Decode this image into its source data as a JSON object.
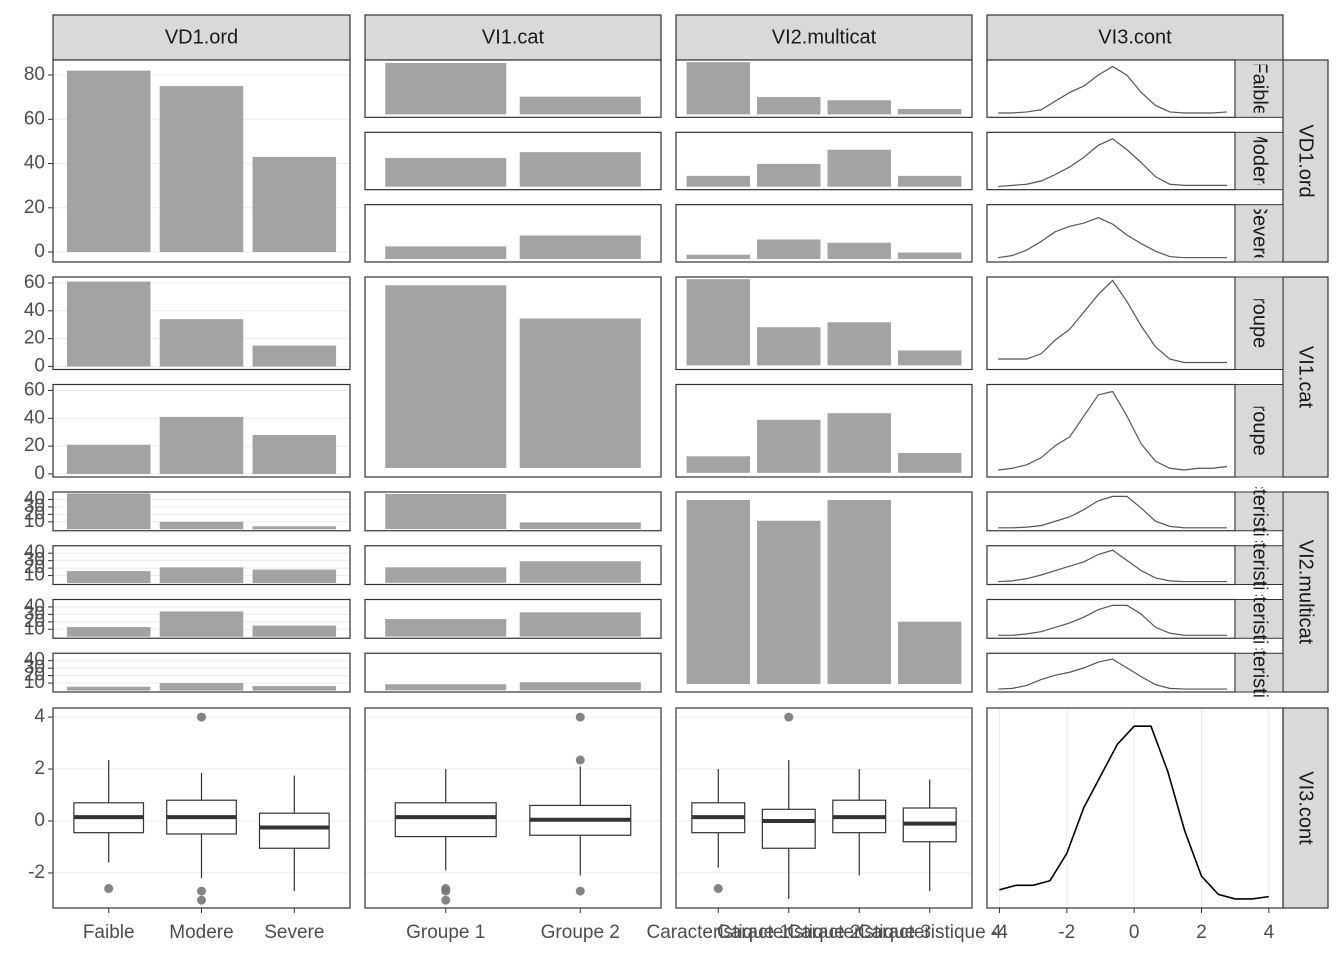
{
  "chart_data": {
    "type": "pairs",
    "colors": {
      "bar": "#a3a3a3",
      "density": "#555555",
      "diagonal_density": "#000000",
      "box": "#333333",
      "outlier": "#777777"
    },
    "variables": [
      {
        "name": "VD1.ord",
        "levels": [
          "Faible",
          "Modere",
          "Severe"
        ]
      },
      {
        "name": "VI1.cat",
        "levels": [
          "Groupe 1",
          "Groupe 2"
        ]
      },
      {
        "name": "VI2.multicat",
        "levels": [
          "Caracteristique 1",
          "Caracteristique 2",
          "Caracteristique 3",
          "Caracteristique 4"
        ]
      },
      {
        "name": "VI3.cont"
      }
    ],
    "panels": [
      [
        {
          "type": "bar",
          "values": [
            82,
            75,
            43
          ],
          "ylim": [
            -4.5,
            86.8
          ],
          "yticks": [
            0,
            20,
            40,
            60,
            80
          ]
        },
        {
          "type": "facet-bar",
          "series": [
            [
              61,
              21
            ],
            [
              34,
              41
            ],
            [
              15,
              28
            ]
          ],
          "ylim": [
            -3.5,
            64.5
          ]
        },
        {
          "type": "facet-bar",
          "series": [
            [
              48,
              16,
              13,
              5
            ],
            [
              10,
              21,
              34,
              10
            ],
            [
              4,
              18,
              15,
              6
            ]
          ],
          "ylim": [
            -2.7,
            50
          ]
        },
        {
          "type": "facet-density",
          "xlim": [
            -4.39,
            4.28
          ],
          "ylim": [
            -0.03,
            0.5
          ],
          "x": [
            -4,
            -3.5,
            -3,
            -2.5,
            -2,
            -1.5,
            -1,
            -0.5,
            0,
            0.5,
            1,
            1.5,
            2,
            2.5,
            3,
            3.5,
            4
          ],
          "series": [
            {
              "name": "Faible",
              "values": [
                0.01,
                0.01,
                0.02,
                0.04,
                0.12,
                0.2,
                0.26,
                0.36,
                0.44,
                0.36,
                0.2,
                0.08,
                0.02,
                0.01,
                0.01,
                0.01,
                0.02
              ]
            },
            {
              "name": "Modere",
              "values": [
                0,
                0.01,
                0.02,
                0.05,
                0.11,
                0.18,
                0.27,
                0.38,
                0.44,
                0.34,
                0.22,
                0.09,
                0.02,
                0.01,
                0.01,
                0.01,
                0.01
              ]
            },
            {
              "name": "Severe",
              "values": [
                0.01,
                0.03,
                0.08,
                0.16,
                0.25,
                0.3,
                0.33,
                0.38,
                0.32,
                0.22,
                0.14,
                0.07,
                0.02,
                0.01,
                0.01,
                0.01,
                0.01
              ]
            }
          ]
        }
      ],
      [
        {
          "type": "facet-bar",
          "series": [
            [
              61,
              34,
              15
            ],
            [
              21,
              41,
              28
            ]
          ],
          "ylim": [
            -2.2,
            64.3
          ],
          "yticks": [
            0,
            20,
            40,
            60
          ]
        },
        {
          "type": "bar",
          "values": [
            110,
            90
          ],
          "ylim": [
            -5.4,
            115
          ]
        },
        {
          "type": "facet-bar",
          "series": [
            [
              52,
              23,
              26,
              9
            ],
            [
              10,
              32,
              36,
              12
            ]
          ],
          "ylim": [
            -2.5,
            53.3
          ]
        },
        {
          "type": "facet-density",
          "xlim": [
            -4.39,
            4.28
          ],
          "ylim": [
            -0.03,
            0.5
          ],
          "x": [
            -4,
            -3.5,
            -3,
            -2.5,
            -2,
            -1.5,
            -1,
            -0.5,
            0,
            0.5,
            1,
            1.5,
            2,
            2.5,
            3,
            3.5,
            4
          ],
          "series": [
            {
              "name": "Groupe 1",
              "values": [
                0.03,
                0.03,
                0.03,
                0.06,
                0.14,
                0.2,
                0.3,
                0.4,
                0.48,
                0.36,
                0.22,
                0.1,
                0.03,
                0.01,
                0.01,
                0.01,
                0.01
              ]
            },
            {
              "name": "Groupe 2",
              "values": [
                0.01,
                0.02,
                0.04,
                0.08,
                0.15,
                0.2,
                0.32,
                0.44,
                0.46,
                0.32,
                0.16,
                0.06,
                0.02,
                0.01,
                0.02,
                0.02,
                0.03
              ]
            }
          ]
        }
      ],
      [
        {
          "type": "facet-bar",
          "series": [
            [
              48,
              10,
              4
            ],
            [
              16,
              21,
              18
            ],
            [
              13,
              34,
              15
            ],
            [
              5,
              10,
              6
            ]
          ],
          "ylim": [
            -2,
            50
          ],
          "yticks": [
            10,
            20,
            30,
            40
          ]
        },
        {
          "type": "facet-bar",
          "series": [
            [
              52,
              10
            ],
            [
              23,
              32
            ],
            [
              26,
              36
            ],
            [
              9,
              12
            ]
          ],
          "ylim": [
            -2.5,
            55
          ]
        },
        {
          "type": "bar",
          "values": [
            62,
            55,
            62,
            21
          ],
          "ylim": [
            -2.7,
            64.7
          ]
        },
        {
          "type": "facet-density",
          "xlim": [
            -4.39,
            4.28
          ],
          "ylim": [
            -0.03,
            0.5
          ],
          "x": [
            -4,
            -3.5,
            -3,
            -2.5,
            -2,
            -1.5,
            -1,
            -0.5,
            0,
            0.5,
            1,
            1.5,
            2,
            2.5,
            3,
            3.5,
            4
          ],
          "series": [
            {
              "name": "Caracteristique 1",
              "values": [
                0.01,
                0.01,
                0.02,
                0.04,
                0.1,
                0.16,
                0.26,
                0.38,
                0.44,
                0.44,
                0.28,
                0.1,
                0.03,
                0.01,
                0.01,
                0.01,
                0.01
              ]
            },
            {
              "name": "Caracteristique 2",
              "values": [
                0.01,
                0.02,
                0.05,
                0.1,
                0.16,
                0.22,
                0.28,
                0.38,
                0.44,
                0.3,
                0.16,
                0.06,
                0.02,
                0.01,
                0.01,
                0.01,
                0.01
              ]
            },
            {
              "name": "Caracteristique 3",
              "values": [
                0.01,
                0.01,
                0.03,
                0.06,
                0.12,
                0.18,
                0.26,
                0.36,
                0.42,
                0.42,
                0.3,
                0.12,
                0.04,
                0.01,
                0.01,
                0.01,
                0.01
              ]
            },
            {
              "name": "Caracteristique 4",
              "values": [
                0.01,
                0.02,
                0.06,
                0.14,
                0.2,
                0.24,
                0.3,
                0.38,
                0.42,
                0.3,
                0.18,
                0.07,
                0.02,
                0.01,
                0.01,
                0.01,
                0.01
              ]
            }
          ]
        }
      ],
      [
        {
          "type": "box",
          "ylim": [
            -3.35,
            4.35
          ],
          "yticks": [
            -2,
            0,
            2,
            4
          ],
          "boxes": [
            {
              "min": -1.6,
              "q1": -0.45,
              "median": 0.15,
              "q3": 0.7,
              "max": 2.35,
              "outliers": [
                -2.6
              ]
            },
            {
              "min": -2.2,
              "q1": -0.5,
              "median": 0.15,
              "q3": 0.8,
              "max": 1.85,
              "outliers": [
                4,
                -2.7,
                -3.05
              ]
            },
            {
              "min": -2.7,
              "q1": -1.05,
              "median": -0.25,
              "q3": 0.3,
              "max": 1.75,
              "outliers": []
            }
          ]
        },
        {
          "type": "box",
          "ylim": [
            -3.35,
            4.35
          ],
          "boxes": [
            {
              "min": -1.9,
              "q1": -0.6,
              "median": 0.15,
              "q3": 0.7,
              "max": 2.0,
              "outliers": [
                -2.6,
                -2.7,
                -3.05
              ]
            },
            {
              "min": -2.1,
              "q1": -0.55,
              "median": 0.05,
              "q3": 0.6,
              "max": 2.1,
              "outliers": [
                4,
                2.35,
                -2.7
              ]
            }
          ]
        },
        {
          "type": "box",
          "ylim": [
            -3.35,
            4.35
          ],
          "boxes": [
            {
              "min": -1.8,
              "q1": -0.45,
              "median": 0.15,
              "q3": 0.7,
              "max": 2.0,
              "outliers": [
                -2.6
              ]
            },
            {
              "min": -3.0,
              "q1": -1.05,
              "median": 0.0,
              "q3": 0.45,
              "max": 2.35,
              "outliers": [
                4
              ]
            },
            {
              "min": -2.1,
              "q1": -0.45,
              "median": 0.15,
              "q3": 0.8,
              "max": 2.0,
              "outliers": []
            },
            {
              "min": -2.7,
              "q1": -0.8,
              "median": -0.1,
              "q3": 0.5,
              "max": 1.6,
              "outliers": []
            }
          ]
        },
        {
          "type": "density",
          "xlim": [
            -4.37,
            4.42
          ],
          "ylim": [
            -0.02,
            0.42
          ],
          "xticks": [
            -4,
            -2,
            0,
            2,
            4
          ],
          "x": [
            -4,
            -3.5,
            -3,
            -2.5,
            -2,
            -1.5,
            -1,
            -0.5,
            0,
            0.5,
            1,
            1.5,
            2,
            2.5,
            3,
            3.5,
            4
          ],
          "values": [
            0.02,
            0.03,
            0.03,
            0.04,
            0.1,
            0.2,
            0.27,
            0.34,
            0.38,
            0.38,
            0.28,
            0.15,
            0.05,
            0.01,
            0,
            0,
            0.005
          ]
        }
      ]
    ]
  }
}
